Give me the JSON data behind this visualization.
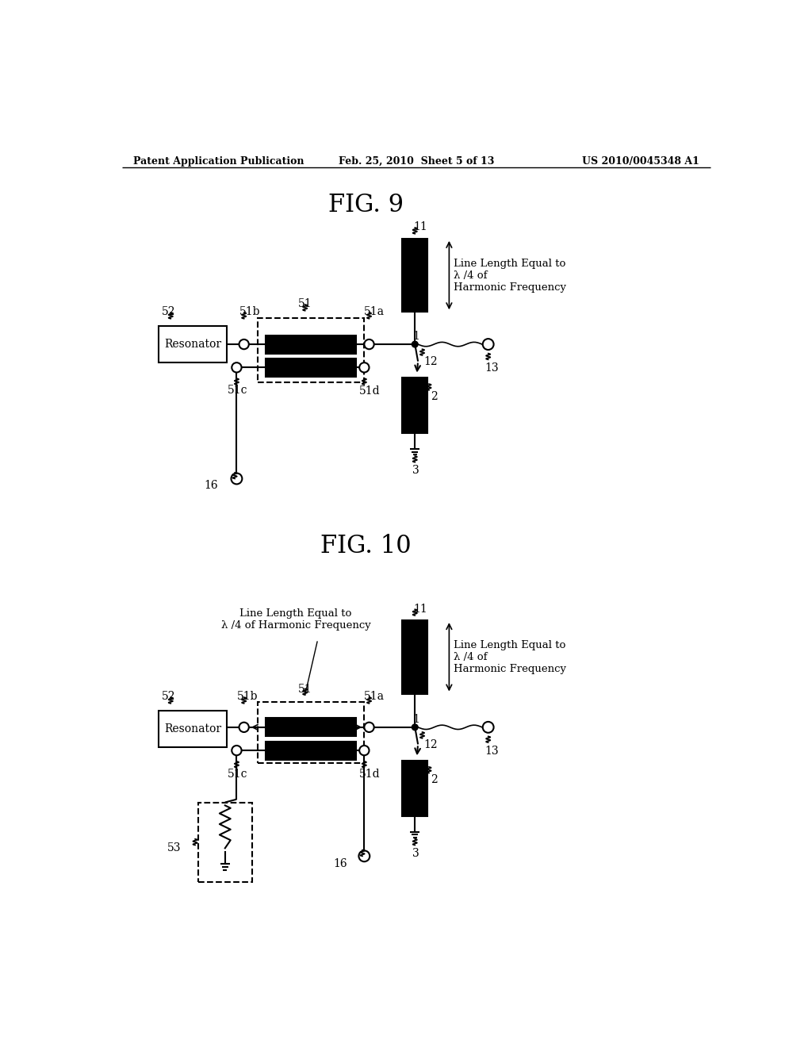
{
  "header_left": "Patent Application Publication",
  "header_mid": "Feb. 25, 2010  Sheet 5 of 13",
  "header_right": "US 2010/0045348 A1",
  "fig9_title": "FIG. 9",
  "fig10_title": "FIG. 10",
  "bg_color": "#ffffff",
  "fig9_annotation": "Line Length Equal to\nλ /4 of\nHarmonic Frequency",
  "fig10_annotation_left": "Line Length Equal to\nλ /4 of Harmonic Frequency",
  "fig10_annotation_right": "Line Length Equal to\nλ /4 of\nHarmonic Frequency"
}
